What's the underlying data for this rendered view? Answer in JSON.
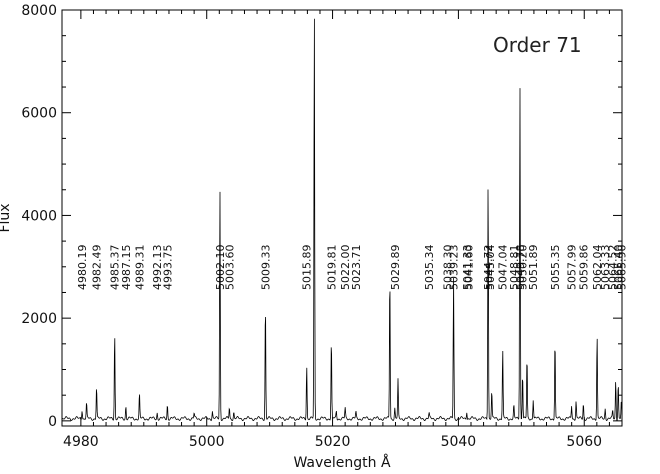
{
  "chart_data": {
    "type": "line",
    "annotation": "Order 71",
    "xlabel": "Wavelength Å",
    "ylabel": "Flux",
    "xlim": [
      4977,
      5066
    ],
    "ylim": [
      -100,
      8000
    ],
    "xticks": [
      4980,
      5000,
      5020,
      5040,
      5060
    ],
    "yticks": [
      0,
      2000,
      4000,
      6000,
      8000
    ],
    "grid": false,
    "line_labels": [
      "4980.19",
      "4982.49",
      "4985.37",
      "4987.15",
      "4989.31",
      "4992.13",
      "4993.75",
      "5002.10",
      "5003.60",
      "5009.33",
      "5015.89",
      "5019.81",
      "5022.00",
      "5023.71",
      "5029.89",
      "5035.34",
      "5038.30",
      "5039.23",
      "5041.33",
      "5041.60",
      "5044.72",
      "5045.04",
      "5047.04",
      "5048.81",
      "5049.78",
      "5050.20",
      "5051.89",
      "5055.35",
      "5057.99",
      "5059.86",
      "5062.04",
      "5063.33",
      "5064.52",
      "5065.40",
      "5065.90"
    ],
    "peaks": [
      {
        "x": 4980.19,
        "y": 180
      },
      {
        "x": 4980.9,
        "y": 300
      },
      {
        "x": 4982.49,
        "y": 620
      },
      {
        "x": 4985.37,
        "y": 1700
      },
      {
        "x": 4987.15,
        "y": 250
      },
      {
        "x": 4989.31,
        "y": 480
      },
      {
        "x": 4992.13,
        "y": 120
      },
      {
        "x": 4993.75,
        "y": 280
      },
      {
        "x": 4998.0,
        "y": 100
      },
      {
        "x": 5000.9,
        "y": 150
      },
      {
        "x": 5002.1,
        "y": 4500
      },
      {
        "x": 5003.6,
        "y": 220
      },
      {
        "x": 5004.3,
        "y": 130
      },
      {
        "x": 5009.33,
        "y": 2250
      },
      {
        "x": 5015.89,
        "y": 1050
      },
      {
        "x": 5017.1,
        "y": 8000
      },
      {
        "x": 5019.81,
        "y": 1550
      },
      {
        "x": 5020.6,
        "y": 150
      },
      {
        "x": 5022.0,
        "y": 200
      },
      {
        "x": 5023.71,
        "y": 120
      },
      {
        "x": 5029.1,
        "y": 2850
      },
      {
        "x": 5029.89,
        "y": 200
      },
      {
        "x": 5030.4,
        "y": 750
      },
      {
        "x": 5035.34,
        "y": 100
      },
      {
        "x": 5039.23,
        "y": 2750
      },
      {
        "x": 5041.33,
        "y": 150
      },
      {
        "x": 5044.72,
        "y": 4700
      },
      {
        "x": 5045.3,
        "y": 550
      },
      {
        "x": 5047.04,
        "y": 1350
      },
      {
        "x": 5048.81,
        "y": 250
      },
      {
        "x": 5049.78,
        "y": 6550
      },
      {
        "x": 5050.2,
        "y": 900
      },
      {
        "x": 5050.9,
        "y": 1200
      },
      {
        "x": 5051.89,
        "y": 380
      },
      {
        "x": 5055.35,
        "y": 1550
      },
      {
        "x": 5057.99,
        "y": 260
      },
      {
        "x": 5058.7,
        "y": 350
      },
      {
        "x": 5059.86,
        "y": 300
      },
      {
        "x": 5062.04,
        "y": 1650
      },
      {
        "x": 5063.33,
        "y": 200
      },
      {
        "x": 5064.52,
        "y": 150
      },
      {
        "x": 5065.0,
        "y": 750
      },
      {
        "x": 5065.4,
        "y": 700
      },
      {
        "x": 5065.9,
        "y": 350
      }
    ]
  }
}
